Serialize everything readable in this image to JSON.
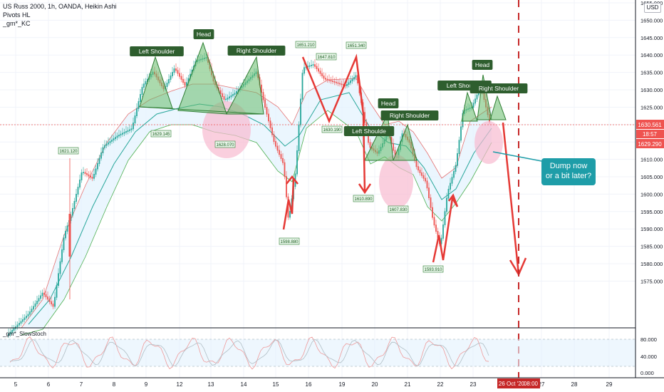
{
  "header": {
    "symbol_line": "US Russ 2000, 1h, OANDA, Heikin Ashi",
    "indicator_1": "Pivots HL",
    "indicator_2": "_gm*_KC",
    "currency_button": "USD"
  },
  "oscillator": {
    "label": "_gm*_SlowStoch",
    "ticks": [
      "80.000",
      "40.000",
      "0.000"
    ]
  },
  "price_axis": {
    "ticks": [
      "1655.000",
      "1650.000",
      "1645.000",
      "1640.000",
      "1635.000",
      "1630.000",
      "1625.000",
      "1620.000",
      "1615.000",
      "1610.000",
      "1605.000",
      "1600.000",
      "1595.000",
      "1590.000",
      "1585.000",
      "1580.000",
      "1575.000"
    ],
    "last_price": "1630.561",
    "countdown": "18:57",
    "lower_price": "1629.290"
  },
  "time_axis": {
    "ticks": [
      "5",
      "6",
      "7",
      "8",
      "9",
      "12",
      "13",
      "14",
      "15",
      "16",
      "19",
      "20",
      "21",
      "22",
      "23",
      "26 Oct '20",
      "27",
      "28",
      "29"
    ],
    "crosshair_time": "08:00"
  },
  "pattern_labels": [
    "Left Shoulder",
    "Head",
    "Right Shoulder",
    "Head",
    "Left Shoulde",
    "Right Shoulder",
    "Left Shoulder",
    "Head",
    "Right Shoulder"
  ],
  "pivot_labels": [
    "1621.120",
    "1629.145",
    "1628.070",
    "1598.880",
    "1651.210",
    "1647.810",
    "1651.340",
    "1630.190",
    "1610.890",
    "1607.830",
    "1593.910"
  ],
  "callout": {
    "line1": "Dump now",
    "line2": "or a bit later?"
  },
  "chart_data": {
    "type": "candlestick",
    "title": "US Russ 2000, 1h, OANDA, Heikin Ashi",
    "ylim": [
      1573,
      1657
    ],
    "key_points": [
      {
        "label": "1621.120",
        "value": 1621.12
      },
      {
        "label": "1629.145",
        "value": 1629.145
      },
      {
        "label": "1628.070",
        "value": 1628.07
      },
      {
        "label": "1598.880",
        "value": 1598.88
      },
      {
        "label": "1651.210",
        "value": 1651.21
      },
      {
        "label": "1647.810",
        "value": 1647.81
      },
      {
        "label": "1651.340",
        "value": 1651.34
      },
      {
        "label": "1630.190",
        "value": 1630.19
      },
      {
        "label": "1610.890",
        "value": 1610.89
      },
      {
        "label": "1607.830",
        "value": 1607.83
      },
      {
        "label": "1593.910",
        "value": 1593.91
      }
    ],
    "last_price": 1630.561
  },
  "colors": {
    "up": "#26a69a",
    "down": "#ef5350",
    "pattern": "#4caf50",
    "arrow": "#e53935",
    "callout": "#1e9da8",
    "highlight": "#f48fb1"
  }
}
